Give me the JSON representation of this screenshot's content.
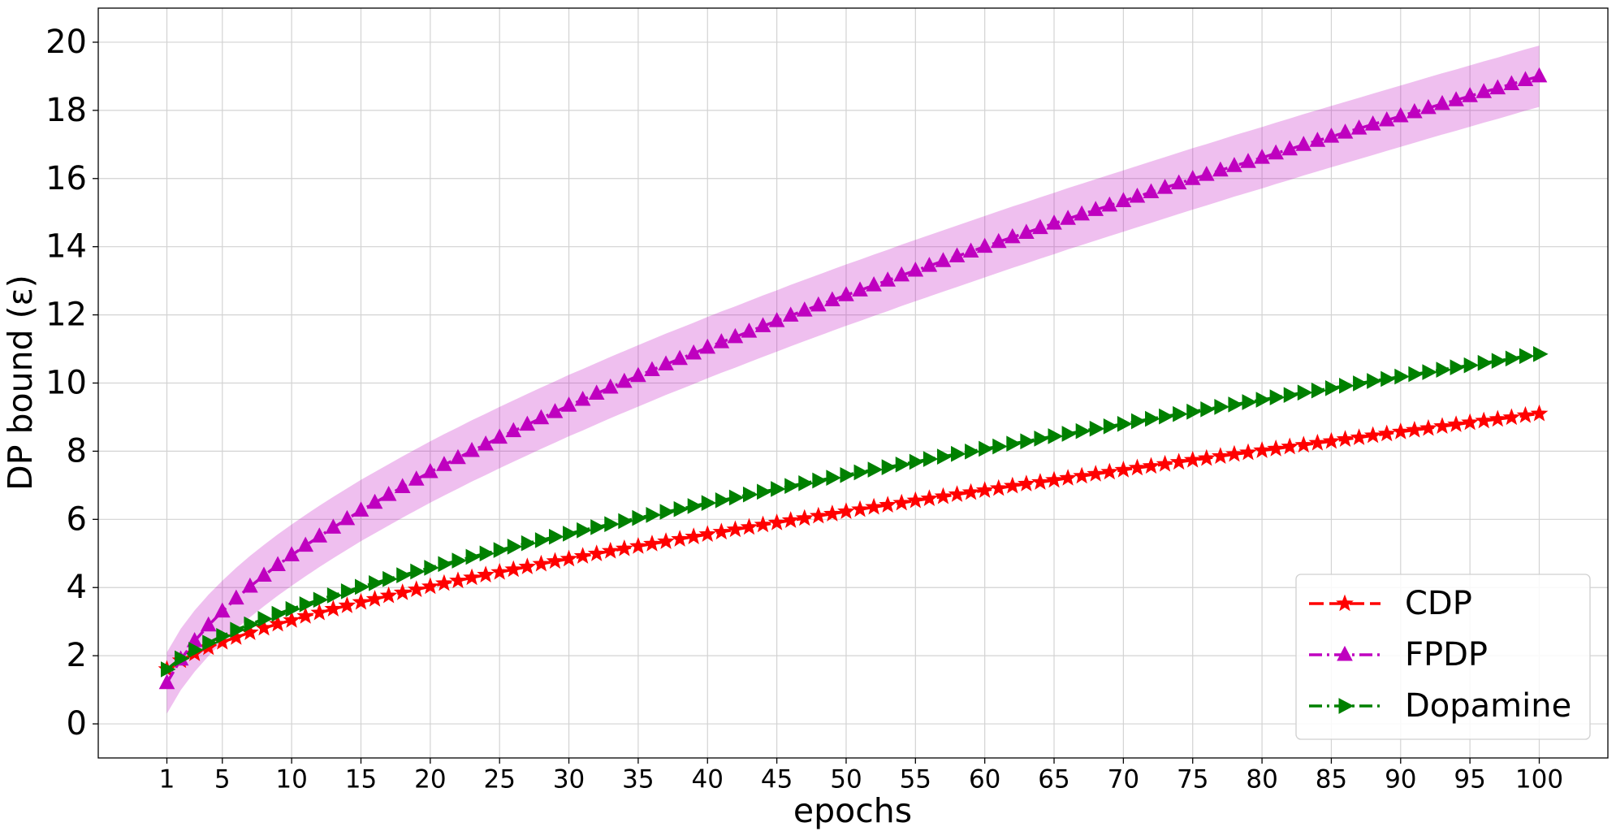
{
  "chart_data": {
    "type": "line",
    "xlabel": "epochs",
    "ylabel": "DP bound (ε)",
    "x": [
      1,
      2,
      3,
      4,
      5,
      6,
      7,
      8,
      9,
      10,
      11,
      12,
      13,
      14,
      15,
      16,
      17,
      18,
      19,
      20,
      21,
      22,
      23,
      24,
      25,
      26,
      27,
      28,
      29,
      30,
      31,
      32,
      33,
      34,
      35,
      36,
      37,
      38,
      39,
      40,
      41,
      42,
      43,
      44,
      45,
      46,
      47,
      48,
      49,
      50,
      51,
      52,
      53,
      54,
      55,
      56,
      57,
      58,
      59,
      60,
      61,
      62,
      63,
      64,
      65,
      66,
      67,
      68,
      69,
      70,
      71,
      72,
      73,
      74,
      75,
      76,
      77,
      78,
      79,
      80,
      81,
      82,
      83,
      84,
      85,
      86,
      87,
      88,
      89,
      90,
      91,
      92,
      93,
      94,
      95,
      96,
      97,
      98,
      99,
      100
    ],
    "xlim": [
      -3.95,
      104.95
    ],
    "xticks": [
      1,
      5,
      10,
      15,
      20,
      25,
      30,
      35,
      40,
      45,
      50,
      55,
      60,
      65,
      70,
      75,
      80,
      85,
      90,
      95,
      100
    ],
    "ylim": [
      -1,
      21
    ],
    "yticks": [
      0,
      2,
      4,
      6,
      8,
      10,
      12,
      14,
      16,
      18,
      20
    ],
    "grid": true,
    "legend": "lower right",
    "series": [
      {
        "name": "CDP",
        "color": "#ff0000",
        "marker": "star",
        "linestyle": "dashed",
        "values": [
          1.6,
          1.86,
          2.06,
          2.24,
          2.4,
          2.54,
          2.68,
          2.81,
          2.93,
          3.04,
          3.16,
          3.26,
          3.37,
          3.47,
          3.57,
          3.66,
          3.76,
          3.85,
          3.94,
          4.03,
          4.12,
          4.2,
          4.29,
          4.37,
          4.45,
          4.53,
          4.61,
          4.69,
          4.77,
          4.84,
          4.92,
          4.99,
          5.07,
          5.14,
          5.21,
          5.28,
          5.35,
          5.42,
          5.49,
          5.56,
          5.63,
          5.7,
          5.77,
          5.84,
          5.9,
          5.97,
          6.03,
          6.1,
          6.16,
          6.23,
          6.29,
          6.36,
          6.42,
          6.48,
          6.55,
          6.61,
          6.67,
          6.73,
          6.79,
          6.85,
          6.91,
          6.98,
          7.04,
          7.09,
          7.15,
          7.21,
          7.27,
          7.33,
          7.39,
          7.45,
          7.51,
          7.56,
          7.62,
          7.68,
          7.74,
          7.79,
          7.85,
          7.91,
          7.96,
          8.02,
          8.07,
          8.13,
          8.18,
          8.24,
          8.29,
          8.35,
          8.4,
          8.46,
          8.51,
          8.57,
          8.62,
          8.67,
          8.73,
          8.78,
          8.84,
          8.89,
          8.94,
          8.99,
          9.05,
          9.1
        ]
      },
      {
        "name": "FPDP",
        "color": "#bf00bf",
        "marker": "triangle-up",
        "linestyle": "dashdot",
        "error": 0.9,
        "values": [
          1.2,
          1.89,
          2.43,
          2.89,
          3.3,
          3.68,
          4.03,
          4.35,
          4.66,
          4.95,
          5.23,
          5.5,
          5.76,
          6.01,
          6.26,
          6.49,
          6.72,
          6.95,
          7.17,
          7.39,
          7.6,
          7.8,
          8.01,
          8.2,
          8.4,
          8.59,
          8.78,
          8.97,
          9.15,
          9.34,
          9.51,
          9.69,
          9.87,
          10.04,
          10.21,
          10.38,
          10.55,
          10.71,
          10.87,
          11.04,
          11.2,
          11.35,
          11.51,
          11.67,
          11.82,
          11.98,
          12.13,
          12.28,
          12.43,
          12.58,
          12.72,
          12.87,
          13.01,
          13.16,
          13.3,
          13.44,
          13.58,
          13.72,
          13.86,
          14.0,
          14.14,
          14.28,
          14.41,
          14.55,
          14.68,
          14.82,
          14.95,
          15.08,
          15.21,
          15.34,
          15.47,
          15.6,
          15.73,
          15.86,
          15.99,
          16.11,
          16.24,
          16.37,
          16.49,
          16.61,
          16.74,
          16.86,
          16.99,
          17.11,
          17.23,
          17.35,
          17.47,
          17.59,
          17.71,
          17.83,
          17.95,
          18.07,
          18.19,
          18.3,
          18.42,
          18.54,
          18.65,
          18.77,
          18.89,
          19.0
        ]
      },
      {
        "name": "Dopamine",
        "color": "#008000",
        "marker": "triangle-right",
        "linestyle": "dashdot",
        "values": [
          1.6,
          1.92,
          2.17,
          2.38,
          2.58,
          2.76,
          2.92,
          3.08,
          3.23,
          3.37,
          3.51,
          3.64,
          3.77,
          3.89,
          4.02,
          4.13,
          4.25,
          4.36,
          4.47,
          4.58,
          4.69,
          4.79,
          4.9,
          5.0,
          5.1,
          5.2,
          5.3,
          5.39,
          5.49,
          5.58,
          5.68,
          5.77,
          5.86,
          5.95,
          6.04,
          6.13,
          6.22,
          6.3,
          6.39,
          6.48,
          6.56,
          6.64,
          6.73,
          6.81,
          6.89,
          6.98,
          7.06,
          7.14,
          7.22,
          7.3,
          7.38,
          7.46,
          7.53,
          7.61,
          7.69,
          7.77,
          7.84,
          7.92,
          7.99,
          8.07,
          8.14,
          8.22,
          8.29,
          8.37,
          8.44,
          8.51,
          8.59,
          8.66,
          8.73,
          8.8,
          8.88,
          8.95,
          9.02,
          9.09,
          9.16,
          9.23,
          9.3,
          9.37,
          9.44,
          9.51,
          9.58,
          9.65,
          9.72,
          9.78,
          9.85,
          9.92,
          9.99,
          10.06,
          10.12,
          10.19,
          10.26,
          10.32,
          10.39,
          10.46,
          10.52,
          10.59,
          10.65,
          10.72,
          10.79,
          10.85
        ]
      }
    ]
  }
}
